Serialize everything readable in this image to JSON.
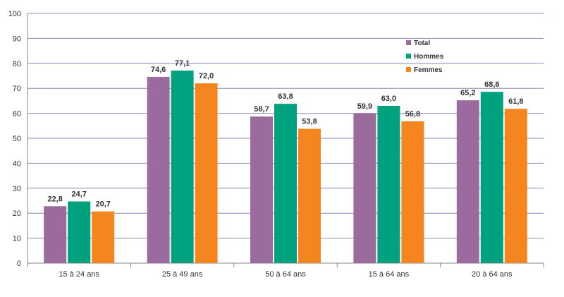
{
  "chart_data": {
    "type": "bar",
    "categories": [
      "15 à 24 ans",
      "25 à 49 ans",
      "50 à 64 ans",
      "15 à 64 ans",
      "20 à 64 ans"
    ],
    "series": [
      {
        "name": "Total",
        "color": "#9b6b9e",
        "values": [
          22.8,
          74.6,
          58.7,
          59.9,
          65.2
        ],
        "labels": [
          "22,8",
          "74,6",
          "58,7",
          "59,9",
          "65,2"
        ]
      },
      {
        "name": "Hommes",
        "color": "#00a17e",
        "values": [
          24.7,
          77.1,
          63.8,
          63.0,
          68.6
        ],
        "labels": [
          "24,7",
          "77,1",
          "63,8",
          "63,0",
          "68,6"
        ]
      },
      {
        "name": "Femmes",
        "color": "#f5861f",
        "values": [
          20.7,
          72.0,
          53.8,
          56.8,
          61.8
        ],
        "labels": [
          "20,7",
          "72,0",
          "53,8",
          "56,8",
          "61,8"
        ]
      }
    ],
    "ylim": [
      0,
      100
    ],
    "yticks": [
      0,
      10,
      20,
      30,
      40,
      50,
      60,
      70,
      80,
      90,
      100
    ],
    "grid": true,
    "gridColor": "#8b86b8",
    "legend_position": "top-right"
  }
}
